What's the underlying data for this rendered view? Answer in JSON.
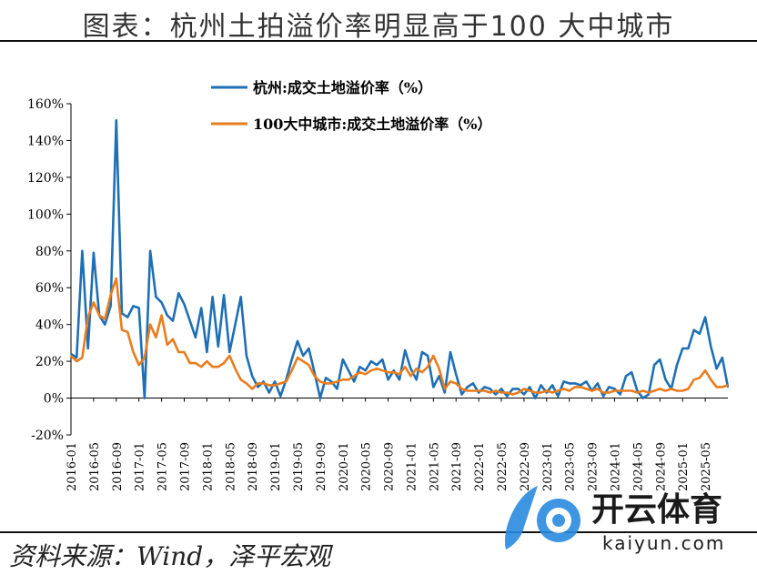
{
  "title": "图表：杭州土拍溢价率明显高于100 大中城市",
  "source": "资料来源：Wind，泽平宏观",
  "watermark": {
    "text": "开云体育",
    "url": "kaiyun.com"
  },
  "colors": {
    "hangzhou": "#1f6fb5",
    "city100": "#e87d1e",
    "axis": "#000000"
  },
  "chart_data": {
    "type": "line",
    "title": "",
    "xlabel": "",
    "ylabel": "",
    "ylim": [
      -20,
      160
    ],
    "yticks": [
      -20,
      0,
      20,
      40,
      60,
      80,
      100,
      120,
      140,
      160
    ],
    "ytick_labels": [
      "-20%",
      "0%",
      "20%",
      "40%",
      "60%",
      "80%",
      "100%",
      "120%",
      "140%",
      "160%"
    ],
    "x_start": "2016-01",
    "x_end": "2025-07",
    "xtick_labels": [
      "2016-01",
      "2016-05",
      "2016-09",
      "2017-01",
      "2017-05",
      "2017-09",
      "2018-01",
      "2018-05",
      "2018-09",
      "2019-01",
      "2019-05",
      "2019-09",
      "2020-01",
      "2020-05",
      "2020-09",
      "2021-01",
      "2021-05",
      "2021-09",
      "2022-01",
      "2022-05",
      "2022-09",
      "2023-01",
      "2023-05",
      "2023-09",
      "2024-01",
      "2024-05",
      "2024-09",
      "2025-01",
      "2025-05"
    ],
    "legend_position": "top-center",
    "series": [
      {
        "name": "杭州:成交土地溢价率（%）",
        "color": "#1f6fb5",
        "values": [
          24,
          22,
          80,
          27,
          79,
          45,
          40,
          50,
          151,
          46,
          44,
          50,
          49,
          0,
          80,
          55,
          52,
          45,
          42,
          57,
          51,
          42,
          33,
          49,
          25,
          55,
          28,
          56,
          25,
          40,
          55,
          23,
          12,
          6,
          9,
          3,
          9,
          1,
          10,
          21,
          31,
          23,
          27,
          14,
          0,
          11,
          9,
          5,
          21,
          15,
          9,
          17,
          15,
          20,
          18,
          21,
          10,
          15,
          10,
          26,
          16,
          10,
          25,
          23,
          6,
          12,
          3,
          25,
          13,
          2,
          6,
          8,
          3,
          6,
          5,
          2,
          5,
          1,
          5,
          5,
          2,
          6,
          0,
          7,
          3,
          7,
          1,
          9,
          8,
          8,
          7,
          9,
          4,
          8,
          1,
          6,
          5,
          2,
          12,
          14,
          4,
          0,
          2,
          18,
          21,
          10,
          5,
          18,
          27,
          27,
          37,
          35,
          44,
          28,
          16,
          22,
          6
        ]
      },
      {
        "name": "100大中城市:成交土地溢价率（%）",
        "color": "#e87d1e",
        "values": [
          23,
          20,
          22,
          44,
          52,
          45,
          43,
          56,
          65,
          37,
          36,
          25,
          18,
          22,
          40,
          33,
          45,
          29,
          32,
          25,
          25,
          19,
          19,
          17,
          20,
          17,
          17,
          19,
          23,
          16,
          10,
          8,
          5,
          8,
          8,
          7,
          7,
          8,
          9,
          15,
          22,
          20,
          18,
          12,
          9,
          8,
          8,
          9,
          10,
          10,
          12,
          14,
          13,
          15,
          16,
          15,
          14,
          14,
          13,
          17,
          12,
          16,
          14,
          17,
          23,
          16,
          5,
          9,
          8,
          5,
          4,
          4,
          4,
          4,
          3,
          4,
          3,
          3,
          2,
          3,
          5,
          4,
          3,
          3,
          4,
          3,
          4,
          5,
          4,
          6,
          6,
          5,
          4,
          5,
          3,
          3,
          4,
          4,
          4,
          4,
          3,
          4,
          3,
          4,
          5,
          4,
          5,
          4,
          4,
          5,
          10,
          11,
          15,
          10,
          6,
          6,
          7
        ]
      }
    ]
  }
}
